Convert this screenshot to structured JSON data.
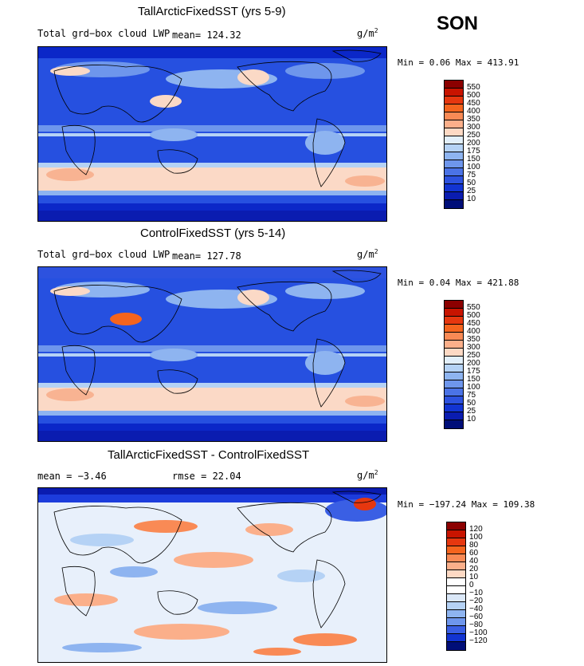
{
  "season": "SON",
  "units_text": "g/m",
  "units_exp": "2",
  "panels": [
    {
      "title": "TallArcticFixedSST (yrs 5-9)",
      "left_label": "Total grd−box cloud LWP",
      "stat_label": "mean= 124.32",
      "minmax": "Min =    0.06 Max = 413.91",
      "levels": [
        "550",
        "500",
        "450",
        "400",
        "350",
        "300",
        "250",
        "200",
        "175",
        "150",
        "100",
        "75",
        "50",
        "25",
        "10"
      ]
    },
    {
      "title": "ControlFixedSST (yrs 5-14)",
      "left_label": "Total grd−box cloud LWP",
      "stat_label": "mean= 127.78",
      "minmax": "Min =    0.04 Max = 421.88",
      "levels": [
        "550",
        "500",
        "450",
        "400",
        "350",
        "300",
        "250",
        "200",
        "175",
        "150",
        "100",
        "75",
        "50",
        "25",
        "10"
      ]
    },
    {
      "title": "TallArcticFixedSST - ControlFixedSST",
      "left_label": "mean =   −3.46",
      "stat_label": "rmse =   22.04",
      "minmax": "Min = −197.24 Max = 109.38",
      "levels": [
        "120",
        "100",
        "80",
        "60",
        "40",
        "20",
        "10",
        "0",
        "−10",
        "−20",
        "−40",
        "−60",
        "−80",
        "−100",
        "−120"
      ]
    }
  ],
  "colors": {
    "abs_scale": [
      "#8b0000",
      "#c81400",
      "#e6370f",
      "#f5641e",
      "#f98a55",
      "#fbaf8a",
      "#fdd9c4",
      "#e2effa",
      "#b5d2f5",
      "#8eb4f0",
      "#6e96ec",
      "#4b73e6",
      "#2d52df",
      "#1234d2",
      "#0a1cb0",
      "#000e78"
    ],
    "diff_scale": [
      "#8b0000",
      "#c81400",
      "#e6370f",
      "#f5641e",
      "#f98a55",
      "#fbaf8a",
      "#fdd9c4",
      "#ffffff",
      "#ffffff",
      "#dbe8f8",
      "#b5d2f5",
      "#8eb4f0",
      "#6e96ec",
      "#3a5fe4",
      "#1234d2",
      "#000e78"
    ]
  }
}
